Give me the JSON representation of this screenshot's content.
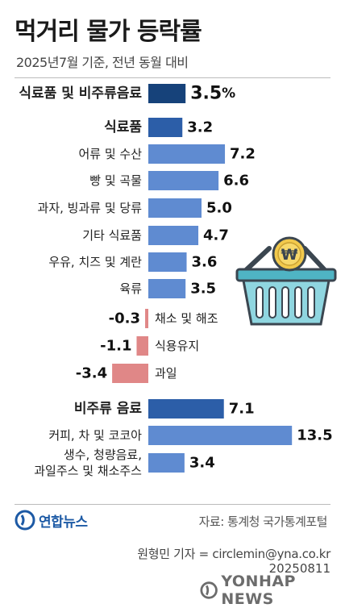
{
  "title": "먹거리 물가 등락률",
  "subtitle": "2025년7월 기준, 전년 동월 대비",
  "chart_data": {
    "type": "bar",
    "orientation": "horizontal",
    "unit": "%",
    "zero_position": "center-left",
    "colors": {
      "header": "#16427a",
      "subheader": "#2c5ea8",
      "positive": "#5f8bd1",
      "negative": "#e08787"
    },
    "items": [
      {
        "label": "식료품 및 비주류음료",
        "value": 3.5,
        "display": "3.5",
        "suffix": "%",
        "level": "header"
      },
      {
        "label": "식료품",
        "value": 3.2,
        "display": "3.2",
        "level": "subheader"
      },
      {
        "label": "어류 및 수산",
        "value": 7.2,
        "display": "7.2",
        "level": "item"
      },
      {
        "label": "빵 및 곡물",
        "value": 6.6,
        "display": "6.6",
        "level": "item"
      },
      {
        "label": "과자, 빙과류 및 당류",
        "value": 5.0,
        "display": "5.0",
        "level": "item"
      },
      {
        "label": "기타 식료품",
        "value": 4.7,
        "display": "4.7",
        "level": "item"
      },
      {
        "label": "우유, 치즈 및 계란",
        "value": 3.6,
        "display": "3.6",
        "level": "item"
      },
      {
        "label": "육류",
        "value": 3.5,
        "display": "3.5",
        "level": "item"
      },
      {
        "label": "채소 및 해조",
        "value": -0.3,
        "display": "-0.3",
        "level": "item"
      },
      {
        "label": "식용유지",
        "value": -1.1,
        "display": "-1.1",
        "level": "item"
      },
      {
        "label": "과일",
        "value": -3.4,
        "display": "-3.4",
        "level": "item"
      },
      {
        "label": "비주류 음료",
        "value": 7.1,
        "display": "7.1",
        "level": "subheader"
      },
      {
        "label": "커피, 차 및 코코아",
        "value": 13.5,
        "display": "13.5",
        "level": "item"
      },
      {
        "label": [
          "생수, 청량음료,",
          "과일주스 및 채소주스"
        ],
        "value": 3.4,
        "display": "3.4",
        "level": "item"
      }
    ]
  },
  "footer": {
    "source": "자료: 통계청 국가통계포털",
    "logo": "연합뉴스",
    "byline": "원형민 기자 = circlemin@yna.co.kr",
    "date": "20250811",
    "watermark": "YONHAP NEWS"
  },
  "icons": {
    "basket": "shopping-basket-icon",
    "coin": "won-coin-icon"
  }
}
